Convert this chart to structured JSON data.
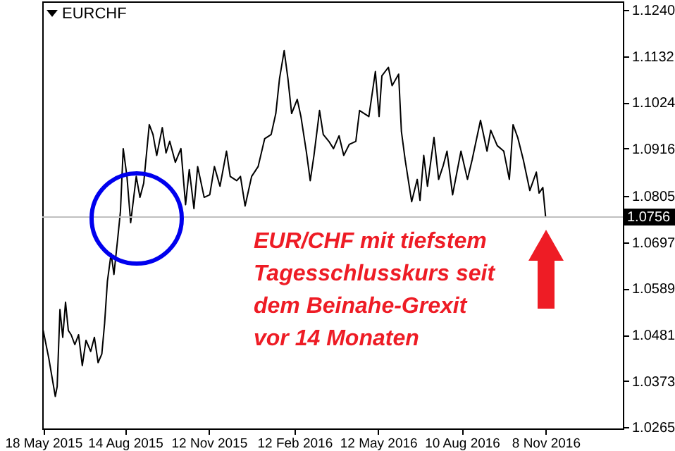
{
  "chart_data": {
    "type": "line",
    "title": "EURCHF",
    "x": [
      "2015-05-18",
      "2015-05-24",
      "2015-05-31",
      "2015-06-02",
      "2015-06-05",
      "2015-06-08",
      "2015-06-11",
      "2015-06-14",
      "2015-06-17",
      "2015-06-21",
      "2015-06-25",
      "2015-06-29",
      "2015-07-03",
      "2015-07-08",
      "2015-07-12",
      "2015-07-16",
      "2015-07-20",
      "2015-07-23",
      "2015-07-26",
      "2015-07-30",
      "2015-08-02",
      "2015-08-06",
      "2015-08-09",
      "2015-08-12",
      "2015-08-16",
      "2015-08-20",
      "2015-08-26",
      "2015-08-30",
      "2015-09-03",
      "2015-09-09",
      "2015-09-13",
      "2015-09-17",
      "2015-09-23",
      "2015-09-27",
      "2015-10-01",
      "2015-10-07",
      "2015-10-13",
      "2015-10-18",
      "2015-10-22",
      "2015-10-27",
      "2015-10-31",
      "2015-11-07",
      "2015-11-13",
      "2015-11-18",
      "2015-11-24",
      "2015-12-01",
      "2015-12-05",
      "2015-12-12",
      "2015-12-16",
      "2015-12-21",
      "2015-12-28",
      "2016-01-04",
      "2016-01-11",
      "2016-01-18",
      "2016-01-23",
      "2016-01-27",
      "2016-02-01",
      "2016-02-05",
      "2016-02-09",
      "2016-02-15",
      "2016-02-19",
      "2016-02-25",
      "2016-02-29",
      "2016-03-04",
      "2016-03-10",
      "2016-03-14",
      "2016-03-20",
      "2016-03-25",
      "2016-03-31",
      "2016-04-05",
      "2016-04-11",
      "2016-04-18",
      "2016-04-22",
      "2016-05-02",
      "2016-05-09",
      "2016-05-13",
      "2016-05-16",
      "2016-05-23",
      "2016-05-27",
      "2016-06-03",
      "2016-06-06",
      "2016-06-10",
      "2016-06-17",
      "2016-06-23",
      "2016-06-26",
      "2016-06-30",
      "2016-07-04",
      "2016-07-11",
      "2016-07-16",
      "2016-07-21",
      "2016-07-25",
      "2016-07-31",
      "2016-08-09",
      "2016-08-16",
      "2016-08-21",
      "2016-08-30",
      "2016-09-06",
      "2016-09-10",
      "2016-09-17",
      "2016-09-24",
      "2016-09-30",
      "2016-10-04",
      "2016-10-09",
      "2016-10-15",
      "2016-10-22",
      "2016-10-29",
      "2016-11-01",
      "2016-11-05",
      "2016-11-08"
    ],
    "series": [
      {
        "color": "#000000",
        "values": [
          1.0491,
          1.0426,
          1.0337,
          1.036,
          1.054,
          1.0475,
          1.0557,
          1.0491,
          1.0481,
          1.0458,
          1.0481,
          1.0409,
          1.0468,
          1.0442,
          1.0475,
          1.0416,
          1.0436,
          1.0508,
          1.0606,
          1.0671,
          1.0622,
          1.0704,
          1.0769,
          1.0916,
          1.0851,
          1.0743,
          1.0851,
          1.0802,
          1.0835,
          1.0972,
          1.0949,
          1.09,
          1.0965,
          1.0906,
          1.0933,
          1.0884,
          1.0916,
          1.0785,
          1.0867,
          1.0776,
          1.0874,
          1.0802,
          1.0808,
          1.0874,
          1.0828,
          1.091,
          1.0851,
          1.0841,
          1.0851,
          1.0782,
          1.0851,
          1.0874,
          1.0939,
          1.0949,
          1.0998,
          1.108,
          1.1145,
          1.108,
          1.0998,
          1.1031,
          1.0991,
          1.0906,
          1.0841,
          1.09,
          1.1005,
          1.0949,
          1.0933,
          1.0916,
          1.0946,
          1.09,
          1.0926,
          1.0933,
          1.1005,
          1.0991,
          1.1096,
          1.0991,
          1.1086,
          1.1106,
          1.1063,
          1.109,
          1.0956,
          1.089,
          1.0792,
          1.0844,
          1.0795,
          1.09,
          1.0828,
          1.0942,
          1.0844,
          1.0877,
          1.091,
          1.0808,
          1.091,
          1.0844,
          1.089,
          1.0982,
          1.091,
          1.0959,
          1.0923,
          1.091,
          1.0844,
          1.0972,
          1.0942,
          1.089,
          1.0818,
          1.0861,
          1.0812,
          1.0825,
          1.0756
        ]
      }
    ],
    "xlim": [
      "2015-05-17",
      "2017-01-30"
    ],
    "xticks": [
      {
        "value": "2015-05-18",
        "label": "18 May 2015"
      },
      {
        "value": "2015-08-14",
        "label": "14 Aug 2015"
      },
      {
        "value": "2015-11-12",
        "label": "12 Nov 2015"
      },
      {
        "value": "2016-02-12",
        "label": "12 Feb 2016"
      },
      {
        "value": "2016-05-12",
        "label": "12 May 2016"
      },
      {
        "value": "2016-08-10",
        "label": "10 Aug 2016"
      },
      {
        "value": "2016-11-08",
        "label": "8 Nov 2016"
      }
    ],
    "ylim": [
      1.0262,
      1.126
    ],
    "yticks": [
      {
        "value": 1.124,
        "label": "1.1240"
      },
      1.1132,
      {
        "value": 1.1024,
        "label": "1.1024"
      },
      1.0916,
      1.0805,
      1.0697,
      1.0589,
      1.0481,
      1.0373,
      1.0265
    ],
    "ref_lines": [
      {
        "axis": "y",
        "value": 1.0756,
        "label": "1.0756",
        "color": "#c0c0c0"
      }
    ],
    "annotations": [
      "EUR/CHF mit tiefstem\nTagesschlusskurs seit\ndem Beinahe-Grexit\nvor 14 Monaten"
    ]
  }
}
